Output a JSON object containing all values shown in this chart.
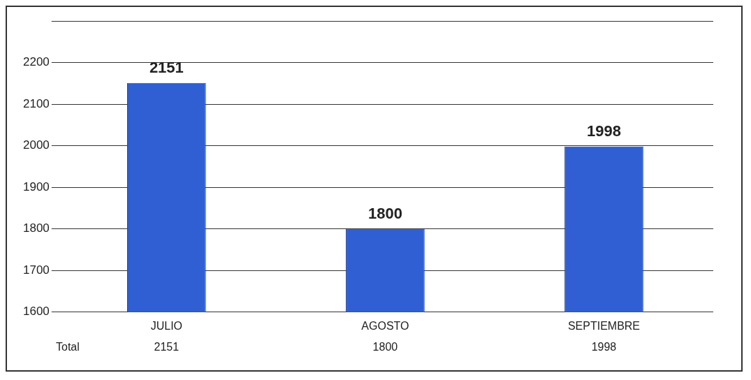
{
  "chart_data": {
    "type": "bar",
    "categories": [
      "JULIO",
      "AGOSTO",
      "SEPTIEMBRE"
    ],
    "series": [
      {
        "name": "Total",
        "color": "#2f5fd3",
        "values": [
          2151,
          1800,
          1998
        ],
        "value_labels": [
          "2151",
          "1800",
          "1998"
        ]
      }
    ],
    "ylim": [
      1600,
      2300
    ],
    "yticks": [
      1600,
      1700,
      1800,
      1900,
      2000,
      2100,
      2200,
      {
        "value": 2300,
        "label": null
      }
    ],
    "grid": "y",
    "data_labels": true,
    "annotations": [
      "2151",
      "1800",
      "1998"
    ]
  }
}
